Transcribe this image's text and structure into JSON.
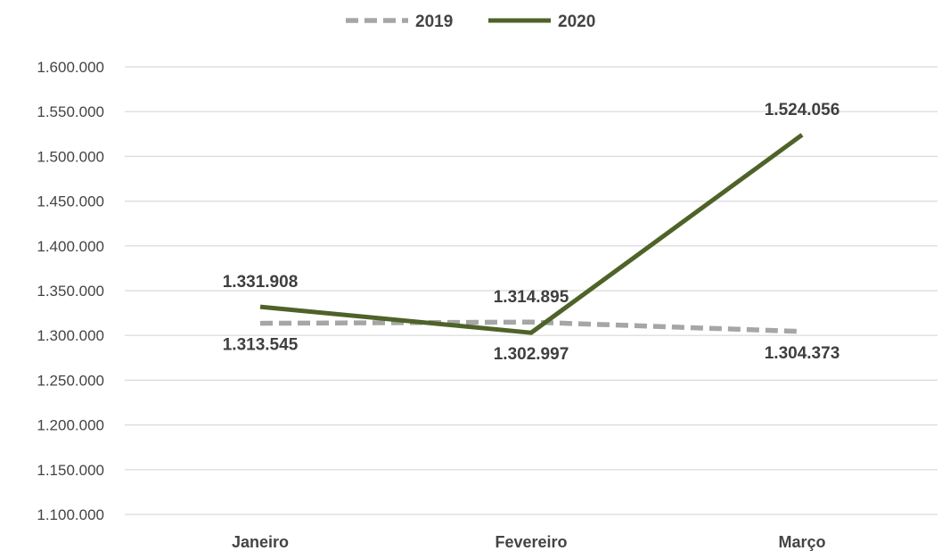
{
  "chart_data": {
    "type": "line",
    "title": "",
    "xlabel": "",
    "ylabel": "",
    "categories": [
      "Janeiro",
      "Fevereiro",
      "Março"
    ],
    "ylim": [
      1100000,
      1600000
    ],
    "yticks": [
      1100000,
      1150000,
      1200000,
      1250000,
      1300000,
      1350000,
      1400000,
      1450000,
      1500000,
      1550000,
      1600000
    ],
    "ytick_labels": [
      "1.100.000",
      "1.150.000",
      "1.200.000",
      "1.250.000",
      "1.300.000",
      "1.350.000",
      "1.400.000",
      "1.450.000",
      "1.500.000",
      "1.550.000",
      "1.600.000"
    ],
    "grid": "horizontal",
    "legend_position": "top-center",
    "series": [
      {
        "name": "2019",
        "values": [
          1313545,
          1314895,
          1304373
        ],
        "labels": [
          "1.313.545",
          "1.314.895",
          "1.304.373"
        ],
        "color": "#a6a6a6",
        "style": "dashed"
      },
      {
        "name": "2020",
        "values": [
          1331908,
          1302997,
          1524056
        ],
        "labels": [
          "1.331.908",
          "1.302.997",
          "1.524.056"
        ],
        "color": "#4f6228",
        "style": "solid"
      }
    ]
  }
}
